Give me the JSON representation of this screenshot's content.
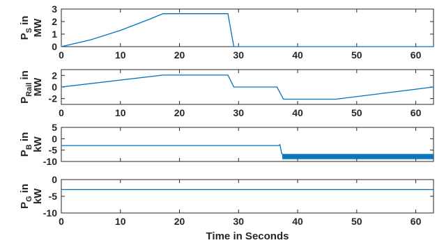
{
  "chart_data": [
    {
      "type": "line",
      "ylabel_main": "P",
      "ylabel_sub": "S",
      "ylabel_tail": " in",
      "ylabel_unit": "MW",
      "xlim": [
        0,
        63
      ],
      "ylim": [
        0,
        3
      ],
      "yticks": [
        0,
        1,
        2,
        3
      ],
      "xticks": [
        0,
        10,
        20,
        30,
        40,
        50,
        60
      ],
      "show_xticklabels": true,
      "series": [
        {
          "color": "#0072BD",
          "x": [
            0,
            5,
            10,
            15,
            17.2,
            28.2,
            29.2,
            63
          ],
          "y": [
            0,
            0.55,
            1.3,
            2.2,
            2.63,
            2.63,
            0,
            0
          ]
        }
      ]
    },
    {
      "type": "line",
      "ylabel_main": "P",
      "ylabel_sub": "Rail",
      "ylabel_tail": " in",
      "ylabel_unit": "MW",
      "xlim": [
        0,
        63
      ],
      "ylim": [
        -3,
        3
      ],
      "yticks": [
        -2,
        0,
        2
      ],
      "xticks": [
        0,
        10,
        20,
        30,
        40,
        50,
        60
      ],
      "show_xticklabels": true,
      "series": [
        {
          "color": "#0072BD",
          "x": [
            0,
            17.2,
            28.2,
            29.2,
            36.5,
            37.6,
            46.5,
            63
          ],
          "y": [
            0,
            2.05,
            2.05,
            0,
            0,
            -2.1,
            -2.1,
            0
          ]
        }
      ]
    },
    {
      "type": "line",
      "ylabel_main": "P",
      "ylabel_sub": "B",
      "ylabel_tail": " in",
      "ylabel_unit": "kW",
      "xlim": [
        0,
        63
      ],
      "ylim": [
        -10,
        5
      ],
      "yticks": [
        -10,
        -5,
        0,
        5
      ],
      "xticks": [
        0,
        10,
        20,
        30,
        40,
        50,
        60
      ],
      "show_xticklabels": false,
      "series": [
        {
          "color": "#0072BD",
          "x": [
            0,
            36.8,
            37.0,
            37.3,
            37.8,
            63
          ],
          "y": [
            -3,
            -3,
            -2.6,
            -6.5,
            -7.8,
            -7.8
          ]
        }
      ],
      "band": {
        "color": "#0072BD",
        "x_start": 37.4,
        "x_end": 63,
        "y_low": -9.0,
        "y_high": -6.7
      }
    },
    {
      "type": "line",
      "ylabel_main": "P",
      "ylabel_sub": "G",
      "ylabel_tail": " in",
      "ylabel_unit": "kW",
      "xlim": [
        0,
        63
      ],
      "ylim": [
        -10,
        0
      ],
      "yticks": [
        -10,
        -5,
        0
      ],
      "xticks": [
        0,
        10,
        20,
        30,
        40,
        50,
        60
      ],
      "show_xticklabels": true,
      "series": [
        {
          "color": "#0072BD",
          "x": [
            0,
            63
          ],
          "y": [
            -3,
            -3
          ]
        }
      ]
    }
  ],
  "xlabel": "Time in Seconds"
}
